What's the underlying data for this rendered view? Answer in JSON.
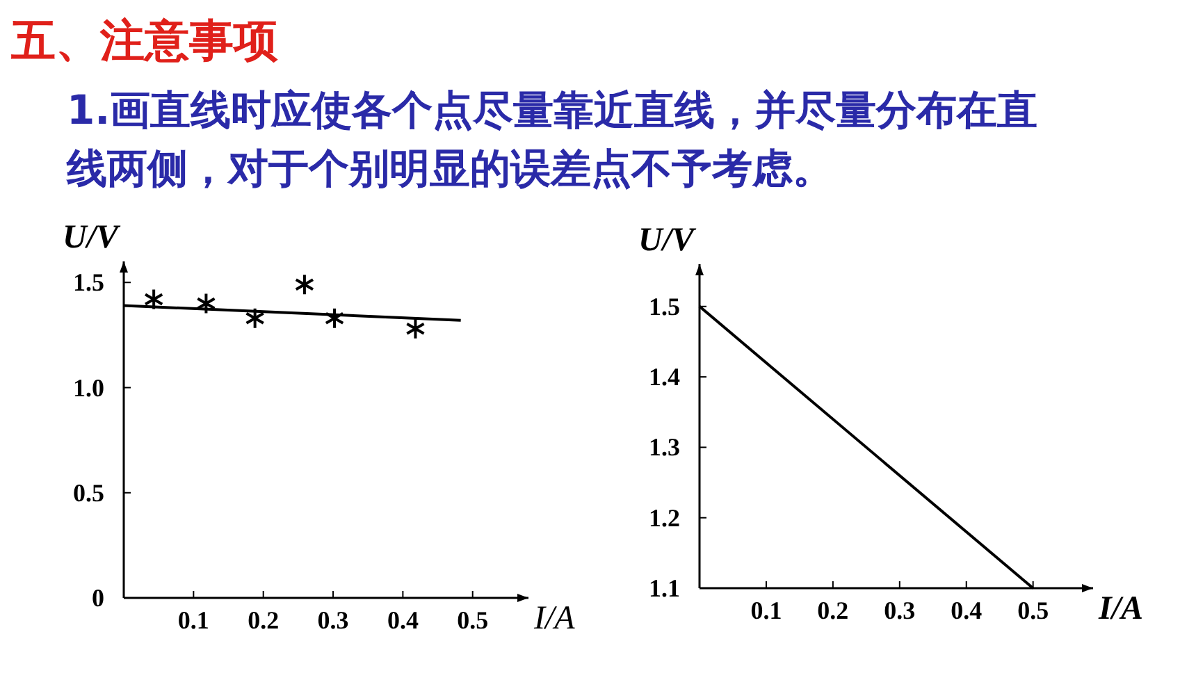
{
  "chart_data": [
    {
      "type": "scatter",
      "title": "五、注意事项",
      "subtitle": "1.画直线时应使各个点尽量靠近直线，并尽量分布在直线两侧，对于个别明显的误差点不予考虑。",
      "xlabel": "I/A",
      "ylabel": "U/V",
      "xlim": [
        0,
        0.58
      ],
      "ylim": [
        0,
        1.6
      ],
      "xticks": [
        0.1,
        0.2,
        0.3,
        0.4,
        0.5
      ],
      "yticks": [
        0,
        0.5,
        {
          "value": 1,
          "label": "1.0"
        },
        1.5
      ],
      "grid": false,
      "series": [
        {
          "marker": "cross",
          "color": "#000000",
          "x": [
            0.043,
            0.118,
            0.188,
            0.259,
            0.302,
            0.418
          ],
          "values": [
            1.42,
            1.4,
            1.33,
            1.49,
            1.33,
            1.28
          ]
        },
        {
          "type": "line",
          "marker": "none",
          "color": "#000000",
          "x": [
            0,
            0.483
          ],
          "values": [
            1.39,
            1.32
          ]
        }
      ]
    },
    {
      "type": "line",
      "xlabel": "I/A",
      "ylabel": "U/V",
      "xlim": [
        0,
        0.59
      ],
      "ylim": [
        1.1,
        1.56
      ],
      "xticks": [
        0.1,
        0.2,
        0.3,
        0.4,
        0.5
      ],
      "yticks": [
        1.1,
        1.2,
        1.3,
        1.4,
        1.5
      ],
      "grid": false,
      "series": [
        {
          "marker": "none",
          "color": "#000000",
          "x": [
            0,
            0.5
          ],
          "values": [
            1.5,
            1.1
          ]
        }
      ]
    }
  ]
}
